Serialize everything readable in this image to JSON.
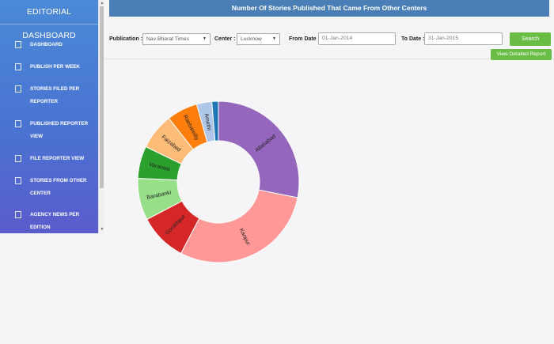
{
  "sidebar": {
    "title": "EDITORIAL DASHBOARD",
    "items": [
      {
        "label": "DASHBOARD"
      },
      {
        "label": "PUBLISH PER WEEK"
      },
      {
        "label": "STORIES FILED PER REPORTER"
      },
      {
        "label": "PUBLISHED REPORTER VIEW"
      },
      {
        "label": "FILE REPORTER VIEW"
      },
      {
        "label": "STORIES FROM OTHER CENTER"
      },
      {
        "label": "AGENCY NEWS PER EDITION"
      }
    ]
  },
  "header": {
    "title": "Number Of Stories Published That Came From Other Centers"
  },
  "filters": {
    "publication_label": "Publication :",
    "publication_value": "Nav Bharat Times",
    "center_label": "Center :",
    "center_value": "Lucknow",
    "from_label": "From Date :",
    "from_value": "01-Jan-2014",
    "to_label": "To Date :",
    "to_value": "31-Jan-2015",
    "search_label": "Search",
    "report_label": "View Detailed Report"
  },
  "chart_data": {
    "type": "pie",
    "donut": true,
    "categories": [
      "Allahabad",
      "Kanpur",
      "Gorakhpur",
      "Barabanki",
      "Varanasi",
      "Faizabad",
      "Raebareilly",
      "Amethi",
      ""
    ],
    "values": [
      27.8,
      29.2,
      9.5,
      8.3,
      6.4,
      7.2,
      6.1,
      3.0,
      1.3
    ],
    "colors": [
      "#9467bd",
      "#ff9896",
      "#d62728",
      "#98df8a",
      "#2ca02c",
      "#ffbb78",
      "#ff7f0e",
      "#aec7e8",
      "#1f77b4"
    ]
  }
}
